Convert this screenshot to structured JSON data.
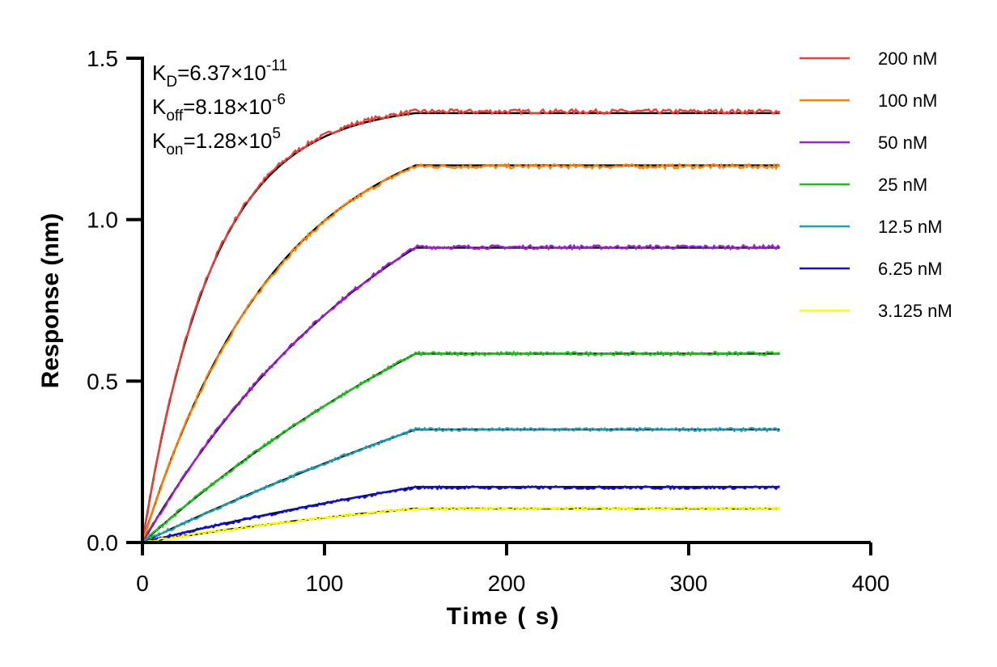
{
  "chart_data": {
    "type": "line",
    "xlabel": "Time ( s)",
    "ylabel": "Response (nm)",
    "xlim": [
      0,
      400
    ],
    "ylim": [
      0,
      1.5
    ],
    "xticks": [
      "0",
      "100",
      "200",
      "300",
      "400"
    ],
    "yticks": [
      "0.0",
      "0.5",
      "1.0",
      "1.5"
    ],
    "grid": false,
    "legend_position": "right",
    "annotations": [
      {
        "id": "kd",
        "base": "K",
        "sub": "D",
        "value": "=6.37×10",
        "exp": "-11"
      },
      {
        "id": "koff",
        "base": "K",
        "sub": "off",
        "value": "=8.18×10",
        "exp": "-6"
      },
      {
        "id": "kon",
        "base": "K",
        "sub": "on",
        "value": "=1.28×10",
        "exp": "5"
      }
    ],
    "association_end": 150,
    "dissociation_end": 350,
    "fit_color": "#000000",
    "series": [
      {
        "name": "200 nM",
        "color": "#e8413a",
        "plateau": 1.335,
        "fit_plateau": 1.33,
        "rate": 0.026
      },
      {
        "name": "100 nM",
        "color": "#ff8000",
        "plateau": 1.165,
        "fit_plateau": 1.168,
        "rate": 0.0135
      },
      {
        "name": "50 nM",
        "color": "#a020d0",
        "plateau": 0.915,
        "fit_plateau": 0.913,
        "rate": 0.0068
      },
      {
        "name": "25 nM",
        "color": "#1fbf1f",
        "plateau": 0.585,
        "fit_plateau": 0.585,
        "rate": 0.0035
      },
      {
        "name": "12.5 nM",
        "color": "#1f9fb5",
        "plateau": 0.35,
        "fit_plateau": 0.35,
        "rate": 0.002
      },
      {
        "name": "6.25 nM",
        "color": "#1010d0",
        "plateau": 0.17,
        "fit_plateau": 0.172,
        "rate": 0.0025
      },
      {
        "name": "3.125 nM",
        "color": "#ffff00",
        "plateau": 0.105,
        "fit_plateau": 0.105,
        "rate": 0.004
      }
    ]
  }
}
